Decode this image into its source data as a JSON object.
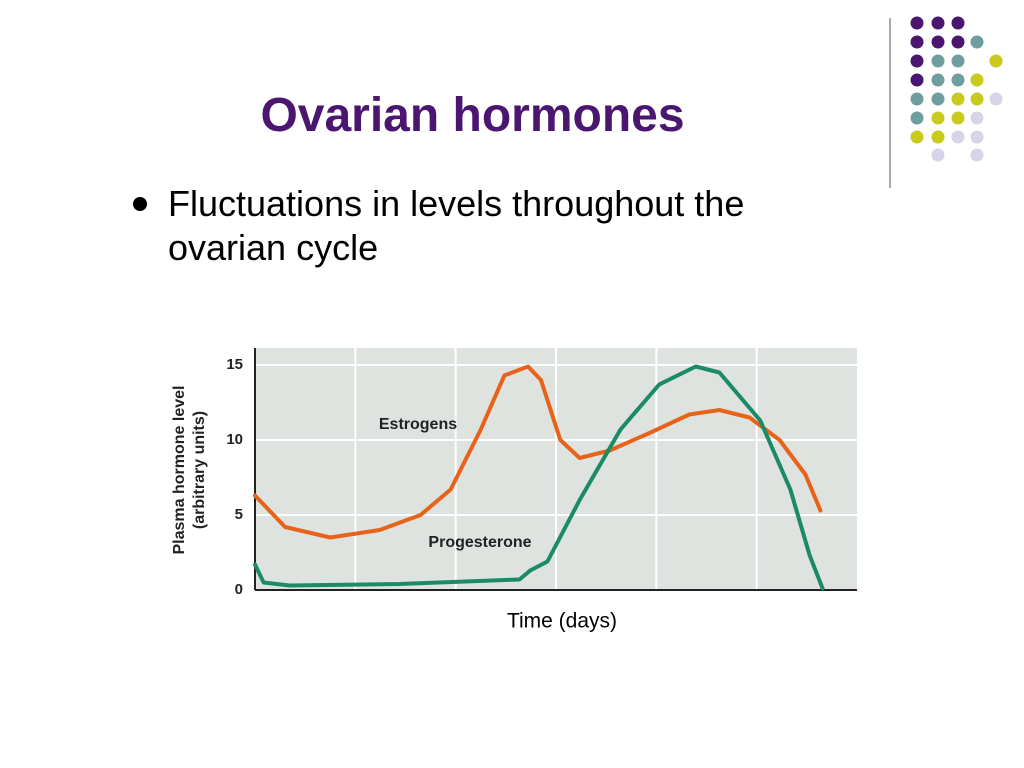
{
  "slide": {
    "title": "Ovarian hormones",
    "bullet": "Fluctuations in levels throughout the ovarian cycle"
  },
  "chart_data": {
    "type": "line",
    "xlabel": "Time (days)",
    "ylabel": [
      "Plasma hormone level",
      "(arbitrary units)"
    ],
    "xlim": [
      0,
      28
    ],
    "ylim": [
      0,
      16
    ],
    "yticks": [
      0,
      5,
      10,
      15
    ],
    "grid": true,
    "series": [
      {
        "name": "Estrogens",
        "color": "#e8631a",
        "x": [
          0,
          1.4,
          3.5,
          5.8,
          7.7,
          9.1,
          10.5,
          11.6,
          12.7,
          13.3,
          14.2,
          15.1,
          16.5,
          18.4,
          20.2,
          21.6,
          23.0,
          24.4,
          25.6,
          26.3
        ],
        "values": [
          6.3,
          4.2,
          3.5,
          4.0,
          5.0,
          6.7,
          10.7,
          14.3,
          14.9,
          14.0,
          10,
          8.8,
          9.3,
          10.5,
          11.7,
          12,
          11.5,
          10,
          7.7,
          5.3
        ]
      },
      {
        "name": "Progesterone",
        "color": "#1b8a66",
        "x": [
          0,
          0.4,
          1.6,
          6.7,
          12.3,
          12.8,
          13.6,
          15.1,
          17,
          18.8,
          20.5,
          21.6,
          23.5,
          24.9,
          25.8,
          26.4
        ],
        "values": [
          1.7,
          0.5,
          0.3,
          0.4,
          0.7,
          1.3,
          1.9,
          6,
          10.7,
          13.7,
          14.9,
          14.5,
          11.3,
          6.7,
          2.3,
          0.1
        ]
      }
    ]
  }
}
